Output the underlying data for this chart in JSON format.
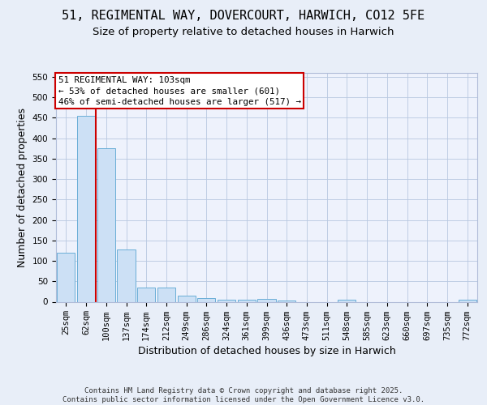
{
  "title": "51, REGIMENTAL WAY, DOVERCOURT, HARWICH, CO12 5FE",
  "subtitle": "Size of property relative to detached houses in Harwich",
  "xlabel": "Distribution of detached houses by size in Harwich",
  "ylabel": "Number of detached properties",
  "categories": [
    "25sqm",
    "62sqm",
    "100sqm",
    "137sqm",
    "174sqm",
    "212sqm",
    "249sqm",
    "286sqm",
    "324sqm",
    "361sqm",
    "399sqm",
    "436sqm",
    "473sqm",
    "511sqm",
    "548sqm",
    "585sqm",
    "623sqm",
    "660sqm",
    "697sqm",
    "735sqm",
    "772sqm"
  ],
  "values": [
    120,
    455,
    375,
    128,
    35,
    35,
    14,
    9,
    5,
    5,
    7,
    2,
    0,
    0,
    5,
    0,
    0,
    0,
    0,
    0,
    5
  ],
  "bar_color": "#cce0f5",
  "bar_edge_color": "#6aaed6",
  "vline_color": "#cc0000",
  "annotation_text": "51 REGIMENTAL WAY: 103sqm\n← 53% of detached houses are smaller (601)\n46% of semi-detached houses are larger (517) →",
  "annotation_box_color": "#cc0000",
  "ylim": [
    0,
    560
  ],
  "yticks": [
    0,
    50,
    100,
    150,
    200,
    250,
    300,
    350,
    400,
    450,
    500,
    550
  ],
  "footer": "Contains HM Land Registry data © Crown copyright and database right 2025.\nContains public sector information licensed under the Open Government Licence v3.0.",
  "bg_color": "#e8eef8",
  "plot_bg_color": "#eef2fc",
  "title_fontsize": 11,
  "subtitle_fontsize": 9.5,
  "axis_label_fontsize": 9,
  "tick_fontsize": 7.5,
  "footer_fontsize": 6.5
}
